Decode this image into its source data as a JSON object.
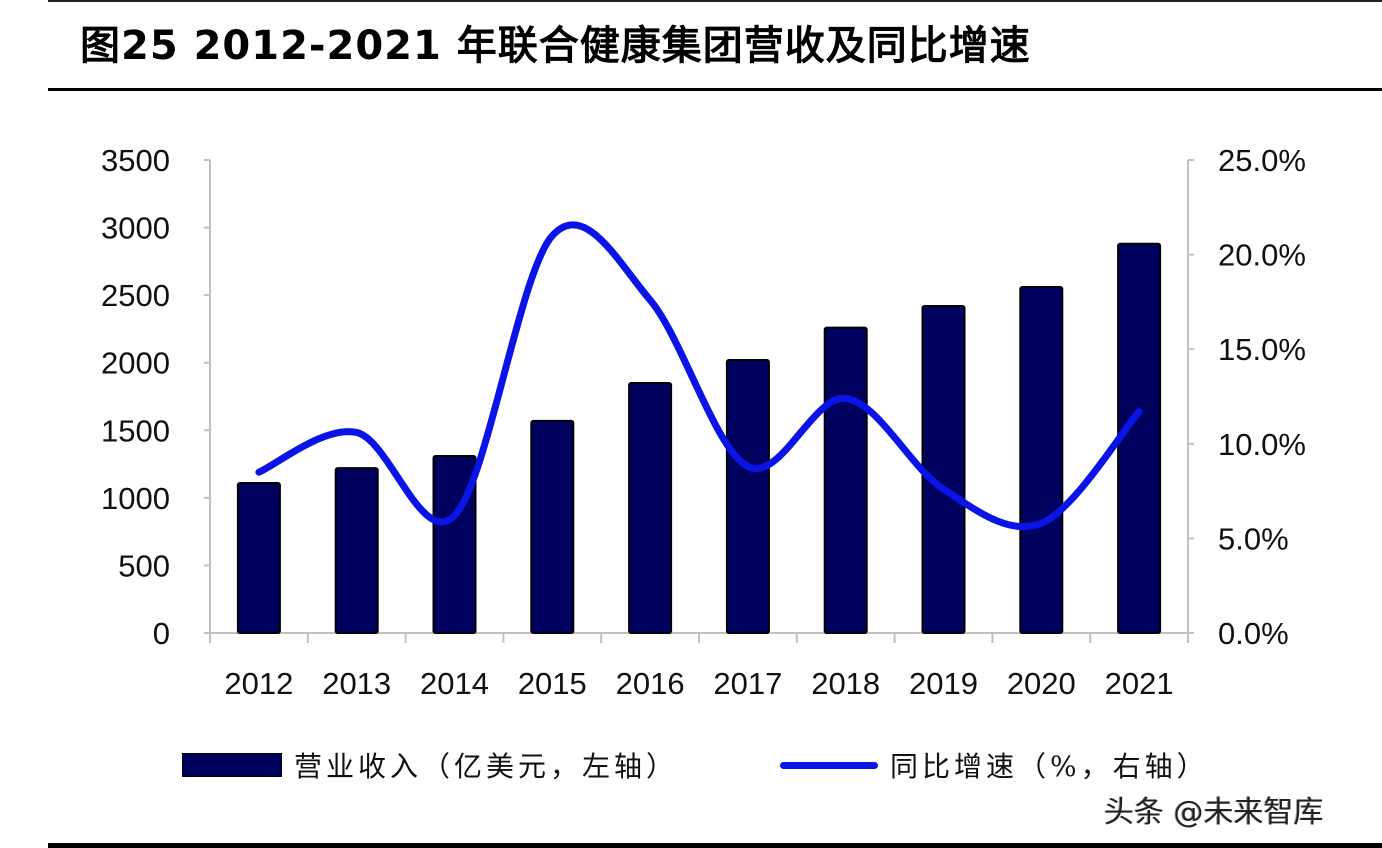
{
  "title": "图25 2012-2021 年联合健康集团营收及同比增速",
  "legend": {
    "bar_label": "营业收入（亿美元，左轴）",
    "line_label": "同比增速（%，右轴）"
  },
  "watermark": "头条 @未来智库",
  "colors": {
    "bar": "#00005e",
    "bar_outline": "#000000",
    "line": "#0a14e6",
    "axis": "#c0c0c0",
    "text": "#111111"
  },
  "chart_data": {
    "type": "bar+line",
    "title": "图25 2012-2021 年联合健康集团营收及同比增速",
    "categories": [
      "2012",
      "2013",
      "2014",
      "2015",
      "2016",
      "2017",
      "2018",
      "2019",
      "2020",
      "2021"
    ],
    "series": [
      {
        "name": "营业收入（亿美元，左轴）",
        "type": "bar",
        "axis": "left",
        "values": [
          1110,
          1220,
          1310,
          1570,
          1850,
          2020,
          2260,
          2420,
          2560,
          2880
        ]
      },
      {
        "name": "同比增速（%，右轴）",
        "type": "line",
        "smooth": true,
        "axis": "right",
        "values": [
          8.5,
          10.6,
          6.2,
          21.0,
          17.6,
          8.8,
          12.4,
          7.6,
          5.8,
          11.7
        ]
      }
    ],
    "left_axis": {
      "min": 0,
      "max": 3500,
      "step": 500,
      "tick_labels": [
        "0",
        "500",
        "1000",
        "1500",
        "2000",
        "2500",
        "3000",
        "3500"
      ]
    },
    "right_axis": {
      "min": 0,
      "max": 25,
      "step": 5,
      "tick_labels": [
        "0.0%",
        "5.0%",
        "10.0%",
        "15.0%",
        "20.0%",
        "25.0%"
      ]
    },
    "xlabel": "",
    "ylabel_left": "",
    "ylabel_right": "",
    "grid": false,
    "legend_position": "bottom"
  }
}
